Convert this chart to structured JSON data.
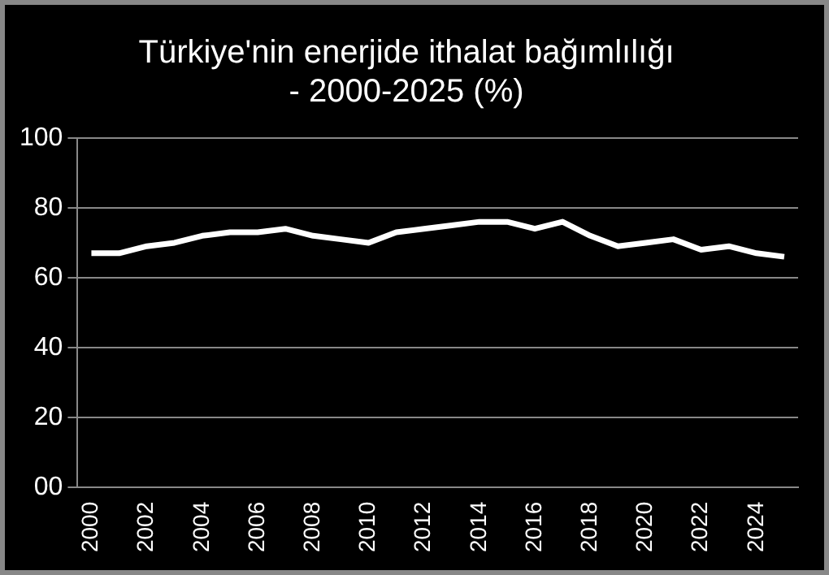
{
  "chart_data": {
    "type": "line",
    "title": "Türkiye'nin enerjide ithalat bağımlılığı\n- 2000-2025 (%)",
    "categories": [
      "2000",
      null,
      "2002",
      null,
      "2004",
      null,
      "2006",
      null,
      "2008",
      null,
      "2010",
      null,
      "2012",
      null,
      "2014",
      null,
      "2016",
      null,
      "2018",
      null,
      "2020",
      null,
      "2022",
      null,
      "2024",
      null
    ],
    "values": [
      67,
      67,
      69,
      70,
      72,
      73,
      73,
      74,
      72,
      71,
      70,
      73,
      74,
      75,
      76,
      76,
      74,
      76,
      72,
      69,
      70,
      71,
      68,
      69,
      67,
      66
    ],
    "color": "#ffffff",
    "ylim": [
      0,
      100
    ],
    "yticks": [
      {
        "value": 0,
        "label": "00"
      },
      20,
      40,
      60,
      80,
      100
    ],
    "grid": "y",
    "legend": false,
    "marker": "none",
    "line_style": "solid"
  }
}
